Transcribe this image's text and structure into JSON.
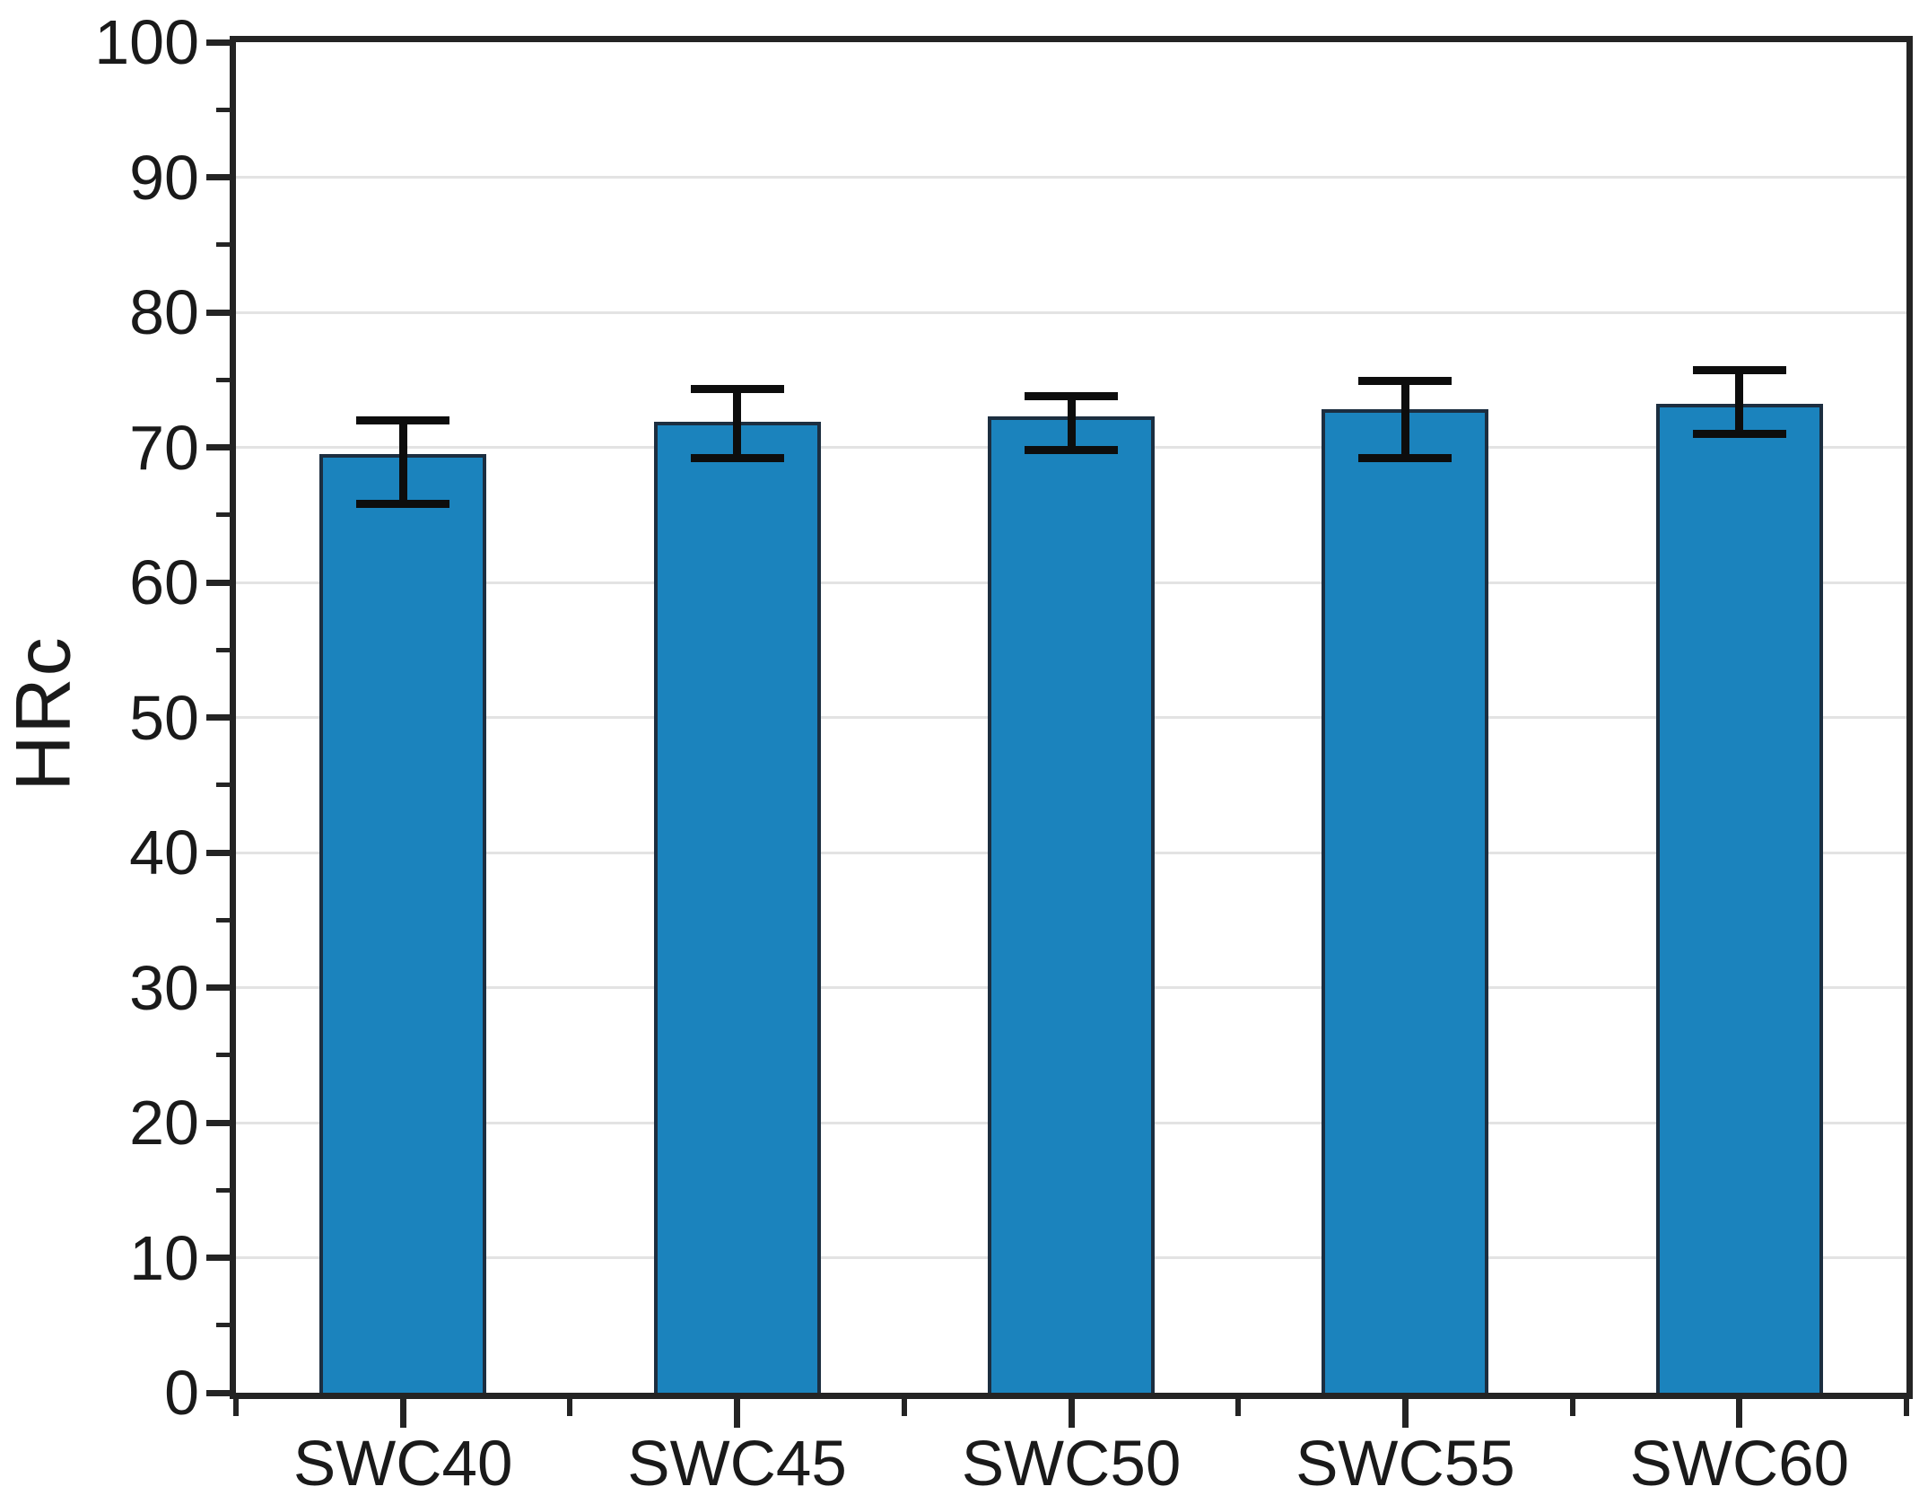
{
  "figure": {
    "background": "#ffffff"
  },
  "chart_data": {
    "type": "bar",
    "title": "",
    "xlabel": "",
    "ylabel": "HRc",
    "categories": [
      "SWC40",
      "SWC45",
      "SWC50",
      "SWC55",
      "SWC60"
    ],
    "values": [
      69.5,
      71.9,
      72.3,
      72.8,
      73.2
    ],
    "error_high": [
      72.0,
      74.3,
      73.8,
      74.9,
      75.7
    ],
    "error_low": [
      65.8,
      69.2,
      69.8,
      69.2,
      71.0
    ],
    "ylim": [
      0,
      100
    ],
    "y_major_tick_step": 10,
    "y_minor_tick_step": 5,
    "y_tick_labels": [
      "0",
      "10",
      "20",
      "30",
      "40",
      "50",
      "60",
      "70",
      "80",
      "90",
      "100"
    ],
    "grid": "horizontal-major",
    "legend": "none",
    "colors": {
      "bar_fill": "#1b83bd",
      "bar_edge": "#1c2e40",
      "error_bar": "#0d0d0d",
      "gridline": "#e3e3e3",
      "axis": "#242424",
      "text": "#1a1a1a"
    }
  }
}
